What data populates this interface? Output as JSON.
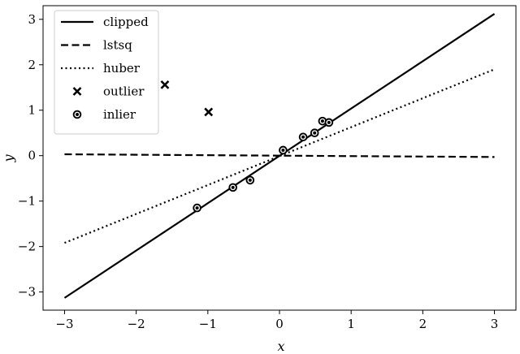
{
  "chart_data": {
    "type": "line",
    "xlabel": "x",
    "ylabel": "y",
    "xlim": [
      -3.3,
      3.3
    ],
    "ylim": [
      -3.4,
      3.3
    ],
    "xticks": [
      -3,
      -2,
      -1,
      0,
      1,
      2,
      3
    ],
    "yticks": [
      -3,
      -2,
      -1,
      0,
      1,
      2,
      3
    ],
    "grid": false,
    "legend_position": "top-left",
    "series": [
      {
        "name": "clipped",
        "kind": "line",
        "style": "solid",
        "color": "#000000",
        "x": [
          -3,
          3
        ],
        "y": [
          -3.13,
          3.12
        ]
      },
      {
        "name": "lstsq",
        "kind": "line",
        "style": "dashed",
        "color": "#000000",
        "x": [
          -3,
          3
        ],
        "y": [
          0.03,
          -0.03
        ]
      },
      {
        "name": "huber",
        "kind": "line",
        "style": "dotted",
        "color": "#000000",
        "x": [
          -3,
          3
        ],
        "y": [
          -1.92,
          1.9
        ]
      },
      {
        "name": "outlier",
        "kind": "scatter",
        "marker": "x",
        "color": "#000000",
        "x": [
          -1.6,
          -0.99
        ],
        "y": [
          1.56,
          0.96
        ]
      },
      {
        "name": "inlier",
        "kind": "scatter",
        "marker": "circle-dot",
        "color": "#000000",
        "x": [
          -1.15,
          -0.65,
          -0.41,
          0.05,
          0.33,
          0.49,
          0.6,
          0.69
        ],
        "y": [
          -1.15,
          -0.7,
          -0.54,
          0.12,
          0.41,
          0.5,
          0.76,
          0.73
        ]
      }
    ]
  }
}
